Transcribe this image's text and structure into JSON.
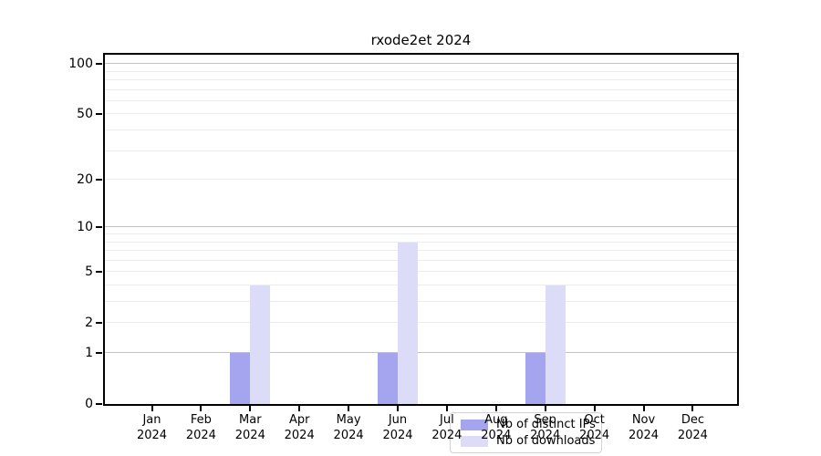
{
  "chart_data": {
    "type": "bar",
    "title": "rxode2et 2024",
    "categories": [
      "Jan",
      "Feb",
      "Mar",
      "Apr",
      "May",
      "Jun",
      "Jul",
      "Aug",
      "Sep",
      "Oct",
      "Nov",
      "Dec"
    ],
    "category_year": "2024",
    "series": [
      {
        "name": "Nb of distinct IPs",
        "color": "#a5a5ef",
        "values": [
          0,
          0,
          1,
          0,
          0,
          1,
          0,
          0,
          1,
          0,
          0,
          0
        ]
      },
      {
        "name": "Nb of downloads",
        "color": "#dcdcf8",
        "values": [
          0,
          0,
          4,
          0,
          0,
          8,
          0,
          0,
          4,
          0,
          0,
          0
        ]
      }
    ],
    "xlabel": "",
    "ylabel": "",
    "yscale": "log1p",
    "ylim": [
      0,
      114
    ],
    "y_ticks": [
      0,
      1,
      2,
      5,
      10,
      20,
      50,
      100
    ],
    "grid": "horizontal",
    "grid_major_values": [
      1,
      10,
      100
    ],
    "grid_minor_values": [
      2,
      3,
      4,
      5,
      6,
      7,
      8,
      9,
      20,
      30,
      40,
      50,
      60,
      70,
      80,
      90
    ],
    "legend_position": "bottom-center"
  },
  "colors": {
    "background": "#ffffff",
    "axis": "#000000",
    "grid_minor": "#ececec",
    "grid_major": "#c3c3c3",
    "legend_border": "#d2d2d2"
  }
}
